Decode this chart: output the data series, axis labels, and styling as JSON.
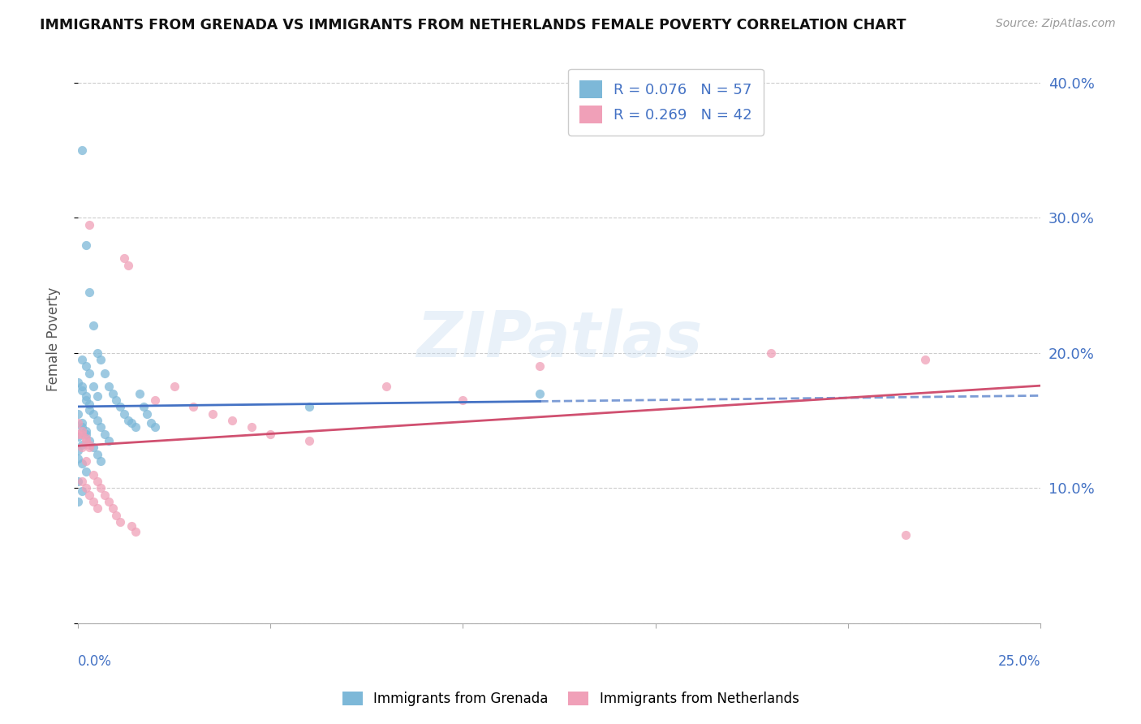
{
  "title": "IMMIGRANTS FROM GRENADA VS IMMIGRANTS FROM NETHERLANDS FEMALE POVERTY CORRELATION CHART",
  "source": "Source: ZipAtlas.com",
  "ylabel": "Female Poverty",
  "yticks": [
    0.0,
    0.1,
    0.2,
    0.3,
    0.4
  ],
  "ytick_labels": [
    "",
    "10.0%",
    "20.0%",
    "30.0%",
    "40.0%"
  ],
  "xlim": [
    0.0,
    0.25
  ],
  "ylim": [
    0.0,
    0.42
  ],
  "grenada_R": 0.076,
  "grenada_N": 57,
  "netherlands_R": 0.269,
  "netherlands_N": 42,
  "grenada_color": "#7db8d8",
  "netherlands_color": "#f0a0b8",
  "grenada_line_color": "#4472c4",
  "netherlands_line_color": "#d05070",
  "background_color": "#ffffff",
  "grenada_x": [
    0.001,
    0.002,
    0.003,
    0.004,
    0.005,
    0.006,
    0.007,
    0.008,
    0.009,
    0.01,
    0.011,
    0.012,
    0.013,
    0.014,
    0.015,
    0.016,
    0.017,
    0.018,
    0.019,
    0.02,
    0.001,
    0.002,
    0.003,
    0.004,
    0.005,
    0.001,
    0.002,
    0.003,
    0.004,
    0.005,
    0.006,
    0.007,
    0.008,
    0.001,
    0.002,
    0.003,
    0.004,
    0.005,
    0.006,
    0.0,
    0.001,
    0.002,
    0.003,
    0.0,
    0.001,
    0.002,
    0.0,
    0.001,
    0.0,
    0.0,
    0.001,
    0.002,
    0.0,
    0.001,
    0.0,
    0.06,
    0.12
  ],
  "grenada_y": [
    0.35,
    0.28,
    0.245,
    0.22,
    0.2,
    0.195,
    0.185,
    0.175,
    0.17,
    0.165,
    0.16,
    0.155,
    0.15,
    0.148,
    0.145,
    0.17,
    0.16,
    0.155,
    0.148,
    0.145,
    0.195,
    0.19,
    0.185,
    0.175,
    0.168,
    0.175,
    0.168,
    0.162,
    0.155,
    0.15,
    0.145,
    0.14,
    0.135,
    0.145,
    0.14,
    0.135,
    0.13,
    0.125,
    0.12,
    0.178,
    0.172,
    0.165,
    0.158,
    0.155,
    0.148,
    0.142,
    0.138,
    0.132,
    0.128,
    0.122,
    0.118,
    0.112,
    0.105,
    0.098,
    0.09,
    0.16,
    0.17
  ],
  "netherlands_x": [
    0.0,
    0.001,
    0.002,
    0.003,
    0.004,
    0.005,
    0.006,
    0.007,
    0.008,
    0.009,
    0.01,
    0.011,
    0.012,
    0.013,
    0.014,
    0.015,
    0.02,
    0.025,
    0.03,
    0.035,
    0.001,
    0.002,
    0.003,
    0.004,
    0.005,
    0.001,
    0.002,
    0.003,
    0.0,
    0.001,
    0.002,
    0.003,
    0.04,
    0.045,
    0.05,
    0.06,
    0.08,
    0.1,
    0.12,
    0.18,
    0.215,
    0.22
  ],
  "netherlands_y": [
    0.14,
    0.13,
    0.12,
    0.295,
    0.11,
    0.105,
    0.1,
    0.095,
    0.09,
    0.085,
    0.08,
    0.075,
    0.27,
    0.265,
    0.072,
    0.068,
    0.165,
    0.175,
    0.16,
    0.155,
    0.105,
    0.1,
    0.095,
    0.09,
    0.085,
    0.14,
    0.135,
    0.13,
    0.148,
    0.142,
    0.137,
    0.132,
    0.15,
    0.145,
    0.14,
    0.135,
    0.175,
    0.165,
    0.19,
    0.2,
    0.065,
    0.195
  ]
}
